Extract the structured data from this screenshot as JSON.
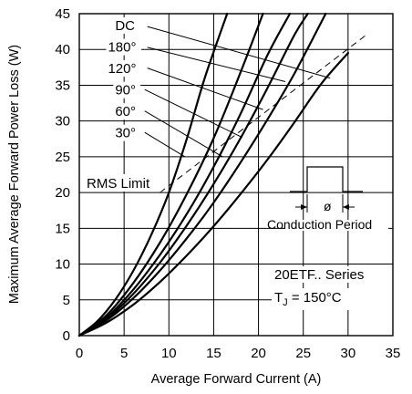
{
  "chart_data": {
    "type": "line",
    "xlabel": "Average Forward Current (A)",
    "ylabel": "Maximum Average Forward Power Loss (W)",
    "xlim": [
      0,
      35
    ],
    "ylim": [
      0,
      45
    ],
    "x_ticks": [
      0,
      5,
      10,
      15,
      20,
      25,
      30,
      35
    ],
    "y_ticks": [
      0,
      5,
      10,
      15,
      20,
      25,
      30,
      35,
      40,
      45
    ],
    "grid": true,
    "series": [
      {
        "name": "30°",
        "x": [
          0,
          2,
          4,
          6,
          8,
          10,
          12,
          14,
          16.5
        ],
        "y": [
          0,
          2.0,
          5.0,
          9.0,
          14.0,
          20.0,
          27.5,
          36.0,
          45
        ]
      },
      {
        "name": "60°",
        "x": [
          0,
          3,
          6,
          9,
          12,
          15,
          18,
          20.5
        ],
        "y": [
          0,
          2.8,
          7.3,
          13.0,
          19.8,
          27.6,
          36.8,
          45
        ]
      },
      {
        "name": "90°",
        "x": [
          0,
          3,
          6,
          9,
          12,
          15,
          18,
          21,
          23.5
        ],
        "y": [
          0,
          2.5,
          6.4,
          11.3,
          17.0,
          23.6,
          31.0,
          39.2,
          45
        ]
      },
      {
        "name": "120°",
        "x": [
          0,
          3,
          6,
          9,
          12,
          15,
          18,
          21,
          24,
          25.5
        ],
        "y": [
          0,
          2.3,
          5.8,
          10.2,
          15.4,
          21.2,
          27.6,
          34.6,
          42.0,
          45
        ]
      },
      {
        "name": "180°",
        "x": [
          0,
          3,
          6,
          9,
          12,
          15,
          18,
          21,
          24,
          27.5
        ],
        "y": [
          0,
          2.1,
          5.2,
          9.1,
          13.6,
          18.6,
          24.2,
          30.2,
          36.6,
          45
        ]
      },
      {
        "name": "DC",
        "x": [
          0,
          3,
          6,
          9,
          12,
          15,
          18,
          21,
          24,
          27,
          30
        ],
        "y": [
          0,
          1.8,
          4.3,
          7.5,
          11.2,
          15.3,
          19.8,
          24.6,
          29.8,
          35.2,
          39.5
        ]
      }
    ],
    "rms_limit": {
      "label": "RMS Limit",
      "x": [
        9.0,
        32.0
      ],
      "y": [
        20.0,
        42.0
      ]
    },
    "curve_labels": [
      {
        "text": "DC",
        "x": 4.0,
        "y": 42.7
      },
      {
        "text": "180°",
        "x": 3.2,
        "y": 39.7
      },
      {
        "text": "120°",
        "x": 3.2,
        "y": 36.7
      },
      {
        "text": "90°",
        "x": 4.0,
        "y": 33.7
      },
      {
        "text": "60°",
        "x": 4.0,
        "y": 30.7
      },
      {
        "text": "30°",
        "x": 4.0,
        "y": 27.7
      }
    ],
    "leaders": [
      {
        "from": [
          7.6,
          43.2
        ],
        "to": [
          28.0,
          36.0
        ]
      },
      {
        "from": [
          7.6,
          40.3
        ],
        "to": [
          23.0,
          35.5
        ]
      },
      {
        "from": [
          7.6,
          37.4
        ],
        "to": [
          20.5,
          31.6
        ]
      },
      {
        "from": [
          7.3,
          34.4
        ],
        "to": [
          18.2,
          27.7
        ]
      },
      {
        "from": [
          7.3,
          31.4
        ],
        "to": [
          16.0,
          25.0
        ]
      },
      {
        "from": [
          7.3,
          28.4
        ],
        "to": [
          11.8,
          25.0
        ]
      }
    ],
    "annotations": {
      "rms_limit": "RMS Limit",
      "conduction_period": "Conduction Period",
      "phi": "ø",
      "series_name": "20ETF.. Series",
      "tj_prefix": "T",
      "tj_sub": "J",
      "tj_value": " = 150°C"
    }
  }
}
